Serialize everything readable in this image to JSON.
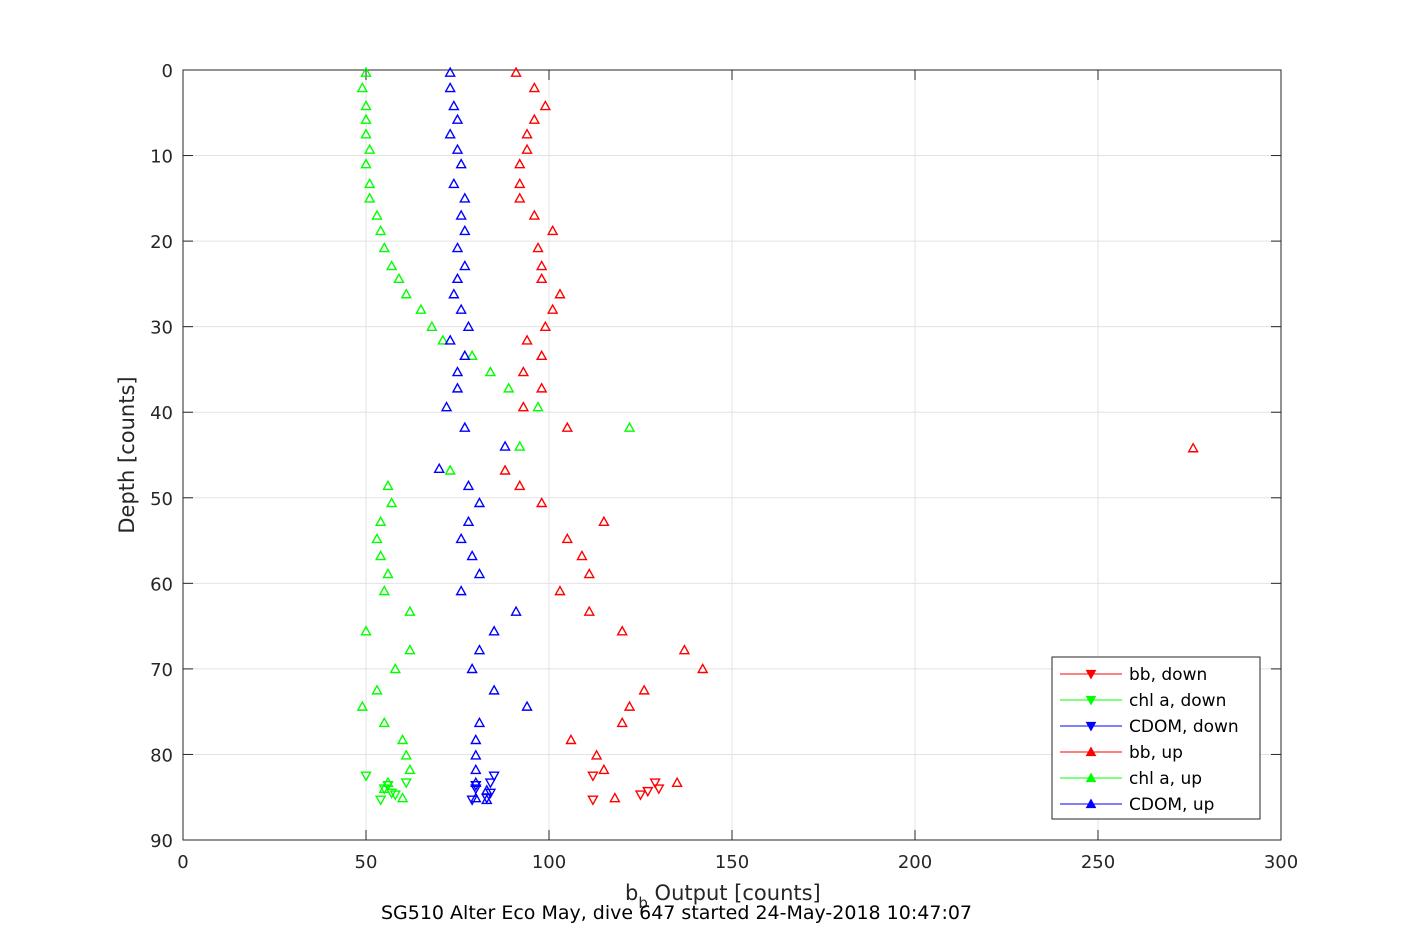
{
  "chart_data": {
    "type": "scatter",
    "title": "",
    "xlabel_main": "b",
    "xlabel_sub": "b",
    "xlabel_rest": " Output [counts]",
    "ylabel": "Depth [counts]",
    "caption": "SG510 Alter Eco May, dive 647 started 24-May-2018 10:47:07",
    "xlim": [
      0,
      300
    ],
    "ylim": [
      0,
      90
    ],
    "y_reversed": true,
    "grid": true,
    "xticks": [
      "0",
      "50",
      "100",
      "150",
      "200",
      "250",
      "300"
    ],
    "yticks": [
      "0",
      "10",
      "20",
      "30",
      "40",
      "50",
      "60",
      "70",
      "80",
      "90"
    ],
    "legend_position": "bottom-right",
    "series": [
      {
        "name": "bb, down",
        "color": "#ff0000",
        "marker": "triangle-down",
        "points": [
          [
            112,
            82.5
          ],
          [
            129,
            83.3
          ],
          [
            130,
            84
          ],
          [
            127,
            84.3
          ],
          [
            125,
            84.7
          ],
          [
            112,
            85.3
          ]
        ]
      },
      {
        "name": "chl a, down",
        "color": "#00ff00",
        "marker": "triangle-down",
        "points": [
          [
            50,
            82.5
          ],
          [
            61,
            83.3
          ],
          [
            56,
            83.6
          ],
          [
            55,
            84
          ],
          [
            57,
            84.5
          ],
          [
            58,
            84.7
          ],
          [
            54,
            85.3
          ]
        ]
      },
      {
        "name": "CDOM, down",
        "color": "#0000ff",
        "marker": "triangle-down",
        "points": [
          [
            85,
            82.5
          ],
          [
            84,
            83.3
          ],
          [
            80,
            83.6
          ],
          [
            80,
            84
          ],
          [
            84,
            84.5
          ],
          [
            83,
            85.1
          ],
          [
            79,
            85.3
          ]
        ]
      },
      {
        "name": "bb, up",
        "color": "#ff0000",
        "marker": "triangle-up",
        "points": [
          [
            91,
            0.3
          ],
          [
            96,
            2.1
          ],
          [
            99,
            4.2
          ],
          [
            96,
            5.8
          ],
          [
            94,
            7.5
          ],
          [
            94,
            9.3
          ],
          [
            92,
            11
          ],
          [
            92,
            13.3
          ],
          [
            92,
            15
          ],
          [
            96,
            17
          ],
          [
            101,
            18.8
          ],
          [
            97,
            20.8
          ],
          [
            98,
            22.9
          ],
          [
            98,
            24.4
          ],
          [
            103,
            26.2
          ],
          [
            101,
            28
          ],
          [
            99,
            30
          ],
          [
            94,
            31.6
          ],
          [
            98,
            33.4
          ],
          [
            93,
            35.3
          ],
          [
            98,
            37.2
          ],
          [
            93,
            39.4
          ],
          [
            105,
            41.8
          ],
          [
            276,
            44.2
          ],
          [
            88,
            46.8
          ],
          [
            92,
            48.6
          ],
          [
            98,
            50.6
          ],
          [
            115,
            52.8
          ],
          [
            105,
            54.8
          ],
          [
            109,
            56.8
          ],
          [
            111,
            58.9
          ],
          [
            103,
            60.9
          ],
          [
            111,
            63.3
          ],
          [
            120,
            65.6
          ],
          [
            137,
            67.8
          ],
          [
            142,
            70
          ],
          [
            126,
            72.5
          ],
          [
            122,
            74.4
          ],
          [
            120,
            76.3
          ],
          [
            106,
            78.3
          ],
          [
            113,
            80.1
          ],
          [
            115,
            81.8
          ],
          [
            135,
            83.3
          ],
          [
            118,
            85.1
          ]
        ]
      },
      {
        "name": "chl a, up",
        "color": "#00ff00",
        "marker": "triangle-up",
        "points": [
          [
            50,
            0.3
          ],
          [
            49,
            2.1
          ],
          [
            50,
            4.2
          ],
          [
            50,
            5.8
          ],
          [
            50,
            7.5
          ],
          [
            51,
            9.3
          ],
          [
            50,
            11
          ],
          [
            51,
            13.3
          ],
          [
            51,
            15
          ],
          [
            53,
            17
          ],
          [
            54,
            18.8
          ],
          [
            55,
            20.8
          ],
          [
            57,
            22.9
          ],
          [
            59,
            24.4
          ],
          [
            61,
            26.2
          ],
          [
            65,
            28
          ],
          [
            68,
            30
          ],
          [
            71,
            31.6
          ],
          [
            79,
            33.4
          ],
          [
            84,
            35.3
          ],
          [
            89,
            37.2
          ],
          [
            97,
            39.4
          ],
          [
            122,
            41.8
          ],
          [
            92,
            44
          ],
          [
            73,
            46.8
          ],
          [
            56,
            48.6
          ],
          [
            57,
            50.6
          ],
          [
            54,
            52.8
          ],
          [
            53,
            54.8
          ],
          [
            54,
            56.8
          ],
          [
            56,
            58.9
          ],
          [
            55,
            60.9
          ],
          [
            62,
            63.3
          ],
          [
            50,
            65.6
          ],
          [
            62,
            67.8
          ],
          [
            58,
            70
          ],
          [
            53,
            72.5
          ],
          [
            49,
            74.4
          ],
          [
            55,
            76.3
          ],
          [
            60,
            78.3
          ],
          [
            61,
            80.1
          ],
          [
            62,
            81.8
          ],
          [
            56,
            83.3
          ],
          [
            55,
            84
          ],
          [
            60,
            85.1
          ]
        ]
      },
      {
        "name": "CDOM, up",
        "color": "#0000ff",
        "marker": "triangle-up",
        "points": [
          [
            73,
            0.3
          ],
          [
            73,
            2.1
          ],
          [
            74,
            4.2
          ],
          [
            75,
            5.8
          ],
          [
            73,
            7.5
          ],
          [
            75,
            9.3
          ],
          [
            76,
            11
          ],
          [
            74,
            13.3
          ],
          [
            77,
            15
          ],
          [
            76,
            17
          ],
          [
            77,
            18.8
          ],
          [
            75,
            20.8
          ],
          [
            77,
            22.9
          ],
          [
            75,
            24.4
          ],
          [
            74,
            26.2
          ],
          [
            76,
            28
          ],
          [
            78,
            30
          ],
          [
            73,
            31.6
          ],
          [
            77,
            33.4
          ],
          [
            75,
            35.3
          ],
          [
            75,
            37.2
          ],
          [
            72,
            39.4
          ],
          [
            77,
            41.8
          ],
          [
            88,
            44
          ],
          [
            70,
            46.6
          ],
          [
            78,
            48.6
          ],
          [
            81,
            50.6
          ],
          [
            78,
            52.8
          ],
          [
            76,
            54.8
          ],
          [
            79,
            56.8
          ],
          [
            81,
            58.9
          ],
          [
            76,
            60.9
          ],
          [
            91,
            63.3
          ],
          [
            85,
            65.6
          ],
          [
            81,
            67.8
          ],
          [
            79,
            70
          ],
          [
            85,
            72.5
          ],
          [
            94,
            74.4
          ],
          [
            81,
            76.3
          ],
          [
            80,
            78.3
          ],
          [
            80,
            80.1
          ],
          [
            80,
            81.8
          ],
          [
            80,
            83.3
          ],
          [
            83,
            84.2
          ],
          [
            80,
            85.1
          ],
          [
            83,
            85.3
          ]
        ]
      }
    ]
  }
}
